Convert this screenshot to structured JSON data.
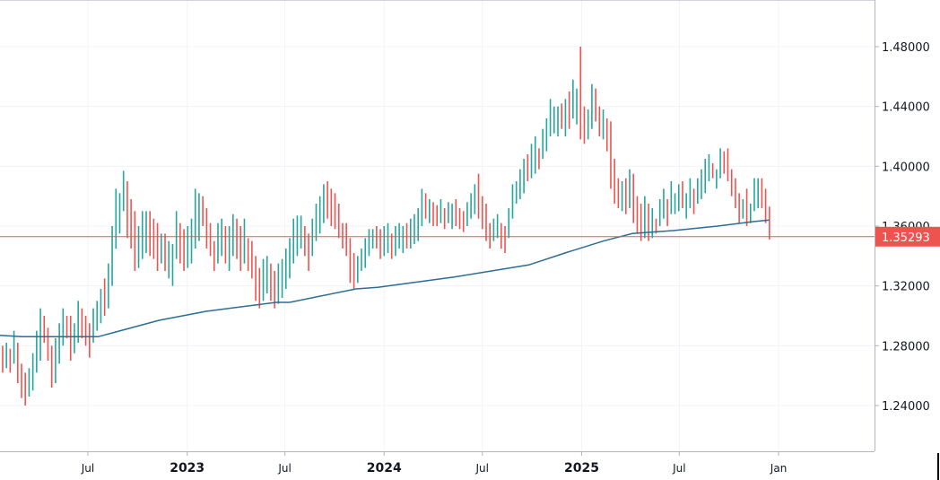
{
  "chart_data": {
    "type": "bar",
    "style": "high-low bars",
    "colors": {
      "up": "#26a69a",
      "down": "#ef5350",
      "moving_average": "#2b6d94",
      "price_line": "#ef5350",
      "grid": "#f0f3fa",
      "axis": "#b2b5be"
    },
    "ylim": [
      1.2,
      1.51
    ],
    "yticks": [
      "1.48000",
      "1.44000",
      "1.40000",
      "1.36000",
      "1.32000",
      "1.28000",
      "1.24000"
    ],
    "xticks": [
      {
        "label": "Jul",
        "date": "2022-07-01",
        "year": false
      },
      {
        "label": "2023",
        "date": "2023-01-01",
        "year": true
      },
      {
        "label": "Jul",
        "date": "2023-07-01",
        "year": false
      },
      {
        "label": "2024",
        "date": "2024-01-01",
        "year": true
      },
      {
        "label": "Jul",
        "date": "2024-07-01",
        "year": false
      },
      {
        "label": "2025",
        "date": "2025-01-01",
        "year": true
      },
      {
        "label": "Jul",
        "date": "2025-07-01",
        "year": false
      },
      {
        "label": "Jan",
        "date": "2026-01-01",
        "year": false
      }
    ],
    "grid": true,
    "current_price": {
      "value": 1.35293,
      "label": "1.35293"
    },
    "bar_fields": [
      "low",
      "high",
      "up"
    ],
    "weekly_bars": [
      {
        "start": "2022-01-17",
        "bars": [
          [
            1.27,
            1.285,
            0
          ],
          [
            1.262,
            1.28,
            0
          ],
          [
            1.265,
            1.282,
            1
          ],
          [
            1.262,
            1.278,
            0
          ],
          [
            1.268,
            1.29,
            1
          ],
          [
            1.255,
            1.282,
            0
          ],
          [
            1.245,
            1.268,
            0
          ],
          [
            1.24,
            1.262,
            0
          ],
          [
            1.246,
            1.265,
            1
          ],
          [
            1.25,
            1.275,
            1
          ],
          [
            1.262,
            1.29,
            1
          ],
          [
            1.27,
            1.305,
            1
          ],
          [
            1.282,
            1.3,
            0
          ],
          [
            1.27,
            1.292,
            0
          ],
          [
            1.252,
            1.28,
            0
          ],
          [
            1.255,
            1.285,
            1
          ],
          [
            1.268,
            1.295,
            1
          ],
          [
            1.28,
            1.305,
            1
          ],
          [
            1.285,
            1.3,
            0
          ],
          [
            1.27,
            1.3,
            0
          ],
          [
            1.275,
            1.295,
            1
          ],
          [
            1.282,
            1.31,
            1
          ],
          [
            1.285,
            1.305,
            0
          ]
        ]
      },
      {
        "start": "2022-06-27",
        "bars": [
          [
            1.28,
            1.3,
            0
          ],
          [
            1.272,
            1.295,
            0
          ],
          [
            1.282,
            1.305,
            1
          ],
          [
            1.29,
            1.31,
            1
          ],
          [
            1.295,
            1.318,
            1
          ],
          [
            1.3,
            1.325,
            0
          ],
          [
            1.305,
            1.335,
            1
          ],
          [
            1.32,
            1.36,
            1
          ],
          [
            1.345,
            1.385,
            1
          ],
          [
            1.355,
            1.382,
            1
          ],
          [
            1.37,
            1.397,
            1
          ],
          [
            1.352,
            1.39,
            0
          ],
          [
            1.345,
            1.378,
            0
          ],
          [
            1.33,
            1.37,
            0
          ],
          [
            1.332,
            1.36,
            1
          ],
          [
            1.338,
            1.37,
            1
          ],
          [
            1.342,
            1.37,
            1
          ],
          [
            1.34,
            1.37,
            0
          ],
          [
            1.338,
            1.365,
            0
          ],
          [
            1.33,
            1.362,
            0
          ],
          [
            1.335,
            1.355,
            1
          ],
          [
            1.33,
            1.355,
            0
          ],
          [
            1.325,
            1.35,
            1
          ],
          [
            1.32,
            1.348,
            1
          ],
          [
            1.338,
            1.37,
            1
          ]
        ]
      },
      {
        "start": "2022-12-19",
        "bars": [
          [
            1.335,
            1.362,
            0
          ],
          [
            1.33,
            1.358,
            0
          ],
          [
            1.332,
            1.36,
            1
          ],
          [
            1.335,
            1.365,
            1
          ],
          [
            1.345,
            1.385,
            1
          ],
          [
            1.35,
            1.382,
            1
          ],
          [
            1.36,
            1.38,
            0
          ],
          [
            1.345,
            1.372,
            0
          ],
          [
            1.34,
            1.362,
            0
          ],
          [
            1.33,
            1.35,
            0
          ],
          [
            1.335,
            1.362,
            1
          ],
          [
            1.34,
            1.365,
            1
          ],
          [
            1.335,
            1.36,
            0
          ],
          [
            1.33,
            1.36,
            1
          ],
          [
            1.34,
            1.368,
            1
          ],
          [
            1.338,
            1.365,
            0
          ],
          [
            1.33,
            1.36,
            0
          ],
          [
            1.335,
            1.365,
            1
          ],
          [
            1.33,
            1.352,
            0
          ],
          [
            1.325,
            1.35,
            0
          ],
          [
            1.31,
            1.34,
            0
          ],
          [
            1.305,
            1.332,
            0
          ],
          [
            1.31,
            1.338,
            1
          ],
          [
            1.315,
            1.34,
            1
          ],
          [
            1.31,
            1.335,
            0
          ],
          [
            1.305,
            1.33,
            0
          ],
          [
            1.308,
            1.335,
            1
          ]
        ]
      },
      {
        "start": "2023-06-26",
        "bars": [
          [
            1.312,
            1.338,
            1
          ],
          [
            1.318,
            1.345,
            1
          ],
          [
            1.325,
            1.352,
            1
          ],
          [
            1.335,
            1.365,
            1
          ],
          [
            1.34,
            1.367,
            1
          ],
          [
            1.345,
            1.367,
            1
          ],
          [
            1.34,
            1.36,
            0
          ],
          [
            1.33,
            1.355,
            0
          ],
          [
            1.34,
            1.365,
            1
          ],
          [
            1.35,
            1.375,
            1
          ],
          [
            1.355,
            1.38,
            1
          ],
          [
            1.362,
            1.388,
            1
          ],
          [
            1.365,
            1.39,
            0
          ],
          [
            1.36,
            1.385,
            0
          ],
          [
            1.358,
            1.382,
            0
          ],
          [
            1.352,
            1.375,
            0
          ],
          [
            1.345,
            1.362,
            0
          ],
          [
            1.34,
            1.362,
            0
          ],
          [
            1.322,
            1.352,
            0
          ],
          [
            1.318,
            1.342,
            0
          ],
          [
            1.322,
            1.34,
            1
          ],
          [
            1.33,
            1.345,
            1
          ],
          [
            1.332,
            1.352,
            1
          ],
          [
            1.34,
            1.358,
            1
          ],
          [
            1.345,
            1.358,
            1
          ],
          [
            1.345,
            1.36,
            0
          ]
        ]
      },
      {
        "start": "2023-12-25",
        "bars": [
          [
            1.338,
            1.358,
            0
          ],
          [
            1.34,
            1.36,
            1
          ],
          [
            1.342,
            1.362,
            1
          ],
          [
            1.338,
            1.355,
            0
          ],
          [
            1.34,
            1.36,
            1
          ],
          [
            1.345,
            1.362,
            1
          ],
          [
            1.342,
            1.36,
            1
          ],
          [
            1.345,
            1.362,
            0
          ],
          [
            1.345,
            1.365,
            1
          ],
          [
            1.348,
            1.368,
            1
          ],
          [
            1.35,
            1.372,
            1
          ],
          [
            1.36,
            1.385,
            1
          ],
          [
            1.365,
            1.382,
            0
          ],
          [
            1.362,
            1.378,
            1
          ],
          [
            1.36,
            1.376,
            0
          ],
          [
            1.36,
            1.374,
            0
          ],
          [
            1.362,
            1.378,
            1
          ],
          [
            1.358,
            1.372,
            0
          ],
          [
            1.362,
            1.376,
            1
          ],
          [
            1.358,
            1.375,
            1
          ],
          [
            1.36,
            1.378,
            0
          ],
          [
            1.358,
            1.372,
            0
          ],
          [
            1.356,
            1.37,
            0
          ],
          [
            1.36,
            1.376,
            1
          ],
          [
            1.365,
            1.382,
            1
          ],
          [
            1.368,
            1.388,
            1
          ]
        ]
      },
      {
        "start": "2024-06-24",
        "bars": [
          [
            1.365,
            1.395,
            0
          ],
          [
            1.358,
            1.38,
            0
          ],
          [
            1.35,
            1.375,
            0
          ],
          [
            1.345,
            1.362,
            0
          ],
          [
            1.35,
            1.365,
            1
          ],
          [
            1.352,
            1.368,
            1
          ],
          [
            1.345,
            1.362,
            0
          ],
          [
            1.342,
            1.36,
            0
          ],
          [
            1.352,
            1.372,
            1
          ],
          [
            1.365,
            1.388,
            1
          ],
          [
            1.375,
            1.39,
            1
          ],
          [
            1.378,
            1.398,
            1
          ],
          [
            1.382,
            1.405,
            1
          ],
          [
            1.39,
            1.408,
            0
          ],
          [
            1.392,
            1.415,
            1
          ],
          [
            1.395,
            1.42,
            1
          ],
          [
            1.398,
            1.412,
            0
          ],
          [
            1.405,
            1.425,
            1
          ],
          [
            1.41,
            1.432,
            1
          ],
          [
            1.42,
            1.445,
            1
          ],
          [
            1.422,
            1.44,
            1
          ],
          [
            1.42,
            1.44,
            1
          ],
          [
            1.425,
            1.442,
            0
          ],
          [
            1.42,
            1.445,
            1
          ],
          [
            1.425,
            1.45,
            0
          ],
          [
            1.432,
            1.458,
            1
          ]
        ]
      },
      {
        "start": "2024-12-23",
        "bars": [
          [
            1.428,
            1.452,
            1
          ],
          [
            1.418,
            1.48,
            0
          ],
          [
            1.415,
            1.44,
            0
          ],
          [
            1.418,
            1.438,
            1
          ],
          [
            1.425,
            1.455,
            1
          ],
          [
            1.43,
            1.452,
            0
          ],
          [
            1.42,
            1.44,
            0
          ],
          [
            1.418,
            1.438,
            1
          ],
          [
            1.41,
            1.432,
            0
          ],
          [
            1.385,
            1.43,
            0
          ],
          [
            1.375,
            1.405,
            0
          ],
          [
            1.372,
            1.392,
            0
          ],
          [
            1.37,
            1.39,
            1
          ],
          [
            1.368,
            1.392,
            0
          ],
          [
            1.372,
            1.398,
            1
          ],
          [
            1.362,
            1.395,
            0
          ],
          [
            1.355,
            1.38,
            0
          ],
          [
            1.35,
            1.375,
            0
          ],
          [
            1.352,
            1.38,
            1
          ],
          [
            1.35,
            1.375,
            0
          ],
          [
            1.352,
            1.372,
            1
          ],
          [
            1.355,
            1.365,
            0
          ],
          [
            1.36,
            1.378,
            1
          ],
          [
            1.365,
            1.385,
            1
          ],
          [
            1.36,
            1.378,
            0
          ],
          [
            1.368,
            1.39,
            1
          ]
        ]
      },
      {
        "start": "2025-06-23",
        "bars": [
          [
            1.368,
            1.382,
            1
          ],
          [
            1.37,
            1.388,
            1
          ],
          [
            1.372,
            1.39,
            0
          ],
          [
            1.365,
            1.382,
            1
          ],
          [
            1.372,
            1.392,
            1
          ],
          [
            1.368,
            1.385,
            0
          ],
          [
            1.375,
            1.392,
            1
          ],
          [
            1.378,
            1.398,
            1
          ],
          [
            1.382,
            1.405,
            1
          ],
          [
            1.39,
            1.408,
            1
          ],
          [
            1.392,
            1.402,
            0
          ],
          [
            1.385,
            1.398,
            1
          ],
          [
            1.392,
            1.412,
            1
          ],
          [
            1.395,
            1.41,
            0
          ],
          [
            1.39,
            1.412,
            0
          ],
          [
            1.38,
            1.398,
            0
          ],
          [
            1.372,
            1.392,
            0
          ],
          [
            1.362,
            1.382,
            0
          ],
          [
            1.365,
            1.378,
            1
          ],
          [
            1.36,
            1.385,
            0
          ],
          [
            1.362,
            1.375,
            1
          ],
          [
            1.37,
            1.392,
            1
          ],
          [
            1.372,
            1.392,
            1
          ],
          [
            1.372,
            1.392,
            0
          ],
          [
            1.362,
            1.385,
            0
          ],
          [
            1.351,
            1.373,
            0
          ]
        ]
      }
    ],
    "moving_average": [
      [
        "2022-01-17",
        1.287
      ],
      [
        "2022-03-01",
        1.286
      ],
      [
        "2022-07-20",
        1.286
      ],
      [
        "2022-11-10",
        1.297
      ],
      [
        "2023-02-05",
        1.303
      ],
      [
        "2023-06-15",
        1.309
      ],
      [
        "2023-07-10",
        1.309
      ],
      [
        "2023-11-10",
        1.318
      ],
      [
        "2023-12-20",
        1.319
      ],
      [
        "2024-05-10",
        1.326
      ],
      [
        "2024-09-25",
        1.334
      ],
      [
        "2024-12-01",
        1.342
      ],
      [
        "2025-02-10",
        1.35
      ],
      [
        "2025-04-05",
        1.355
      ],
      [
        "2025-06-20",
        1.357
      ],
      [
        "2025-09-10",
        1.36
      ],
      [
        "2025-11-15",
        1.363
      ],
      [
        "2025-12-15",
        1.364
      ]
    ]
  }
}
